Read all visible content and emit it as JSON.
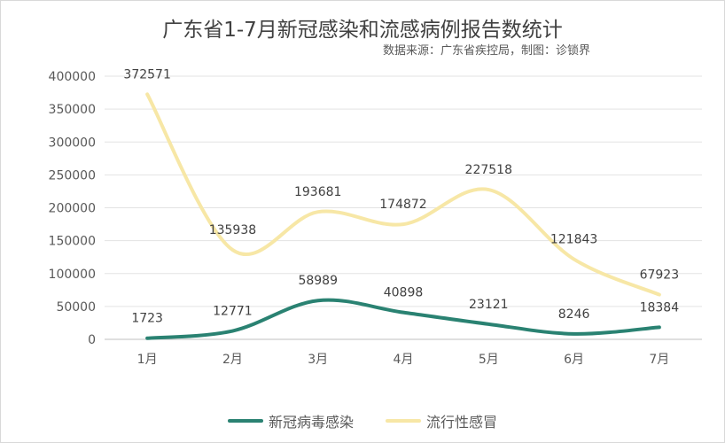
{
  "chart_data": {
    "type": "line",
    "title": "广东省1-7月新冠感染和流感病例报告数统计",
    "subtitle": "数据来源：广东省疾控局，制图：诊锁界",
    "categories": [
      "1月",
      "2月",
      "3月",
      "4月",
      "5月",
      "6月",
      "7月"
    ],
    "ylim": [
      0,
      400000
    ],
    "yticks": [
      0,
      50000,
      100000,
      150000,
      200000,
      250000,
      300000,
      350000,
      400000
    ],
    "grid": true,
    "smooth": true,
    "legend_position": "bottom",
    "series": [
      {
        "name": "新冠病毒感染",
        "color": "#2a8272",
        "values": [
          1723,
          12771,
          58989,
          40898,
          23121,
          8246,
          18384
        ]
      },
      {
        "name": "流行性感冒",
        "color": "#f7e7a6",
        "values": [
          372571,
          135938,
          193681,
          174872,
          227518,
          121843,
          67923
        ]
      }
    ]
  }
}
